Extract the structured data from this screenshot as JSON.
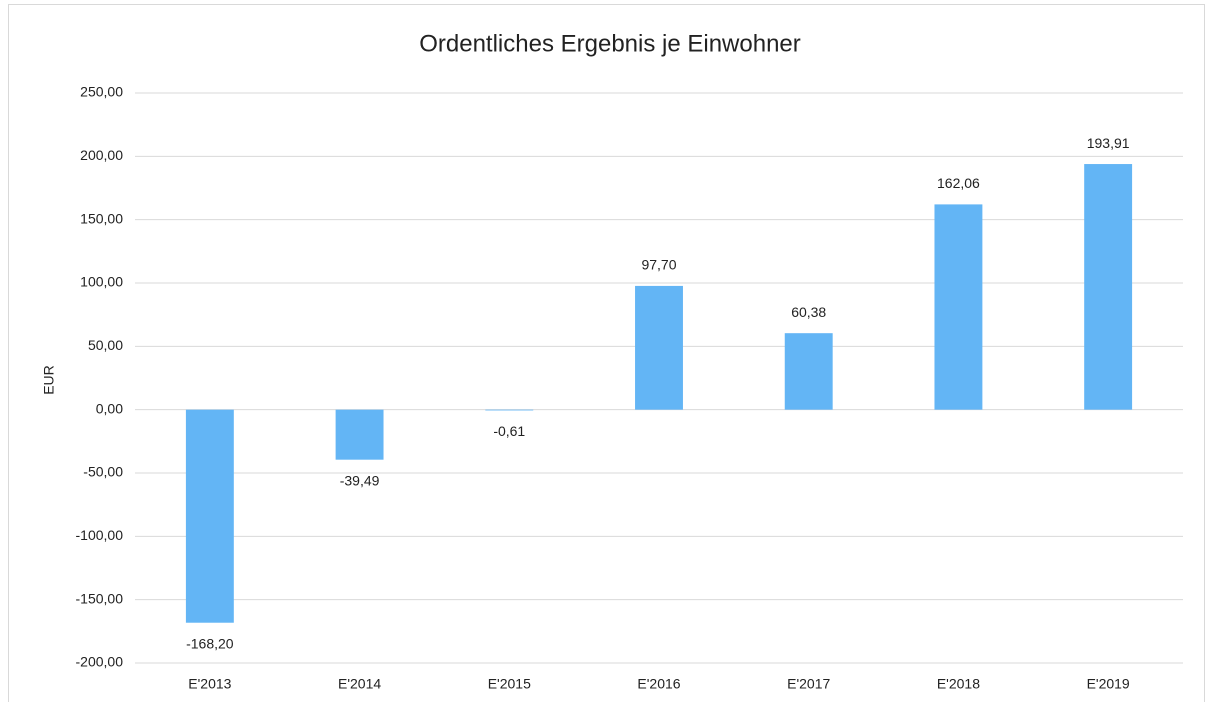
{
  "chart_data": {
    "type": "bar",
    "title": "Ordentliches Ergebnis je Einwohner",
    "y_label": "EUR",
    "categories": [
      "E'2013",
      "E'2014",
      "E'2015",
      "E'2016",
      "E'2017",
      "E'2018",
      "E'2019"
    ],
    "values": [
      -168.2,
      -39.49,
      -0.61,
      97.7,
      60.38,
      162.06,
      193.91
    ],
    "value_labels": [
      "-168,20",
      "-39,49",
      "-0,61",
      "97,70",
      "60,38",
      "162,06",
      "193,91"
    ],
    "color": "#63b5f5",
    "ylim": [
      -200,
      250
    ],
    "yticks": [
      {
        "value": -200,
        "label": "-200,00"
      },
      {
        "value": -150,
        "label": "-150,00"
      },
      {
        "value": -100,
        "label": "-100,00"
      },
      {
        "value": -50,
        "label": "-50,00"
      },
      {
        "value": 0,
        "label": "0,00"
      },
      {
        "value": 50,
        "label": "50,00"
      },
      {
        "value": 100,
        "label": "100,00"
      },
      {
        "value": 150,
        "label": "150,00"
      },
      {
        "value": 200,
        "label": "200,00"
      },
      {
        "value": 250,
        "label": "250,00"
      }
    ],
    "grid": true
  }
}
